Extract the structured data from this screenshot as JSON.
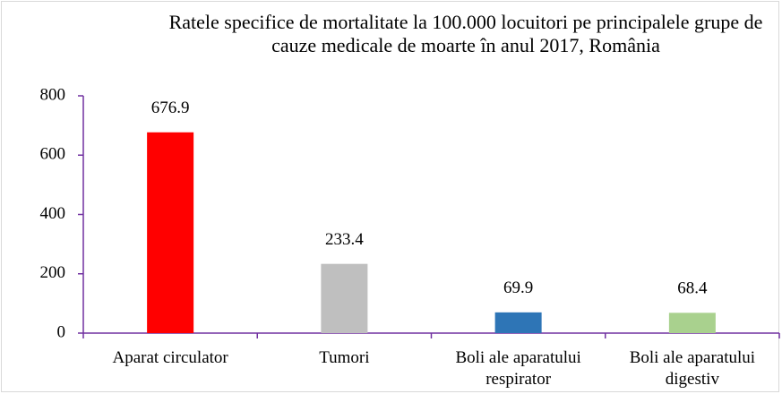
{
  "chart_data": {
    "type": "bar",
    "title": "Ratele specifice de mortalitate la 100.000 locuitori pe principalele grupe de cauze medicale de moarte în anul 2017, România",
    "categories": [
      "Aparat circulator",
      "Tumori",
      "Boli ale aparatului respirator",
      "Boli ale aparatului digestiv"
    ],
    "values": [
      676.9,
      233.4,
      69.9,
      68.4
    ],
    "colors": [
      "#ff0000",
      "#bfbfbf",
      "#2e75b6",
      "#a9d18e"
    ],
    "ylim": [
      0,
      800
    ],
    "yticks": [
      0,
      200,
      400,
      600,
      800
    ],
    "grid": false
  }
}
